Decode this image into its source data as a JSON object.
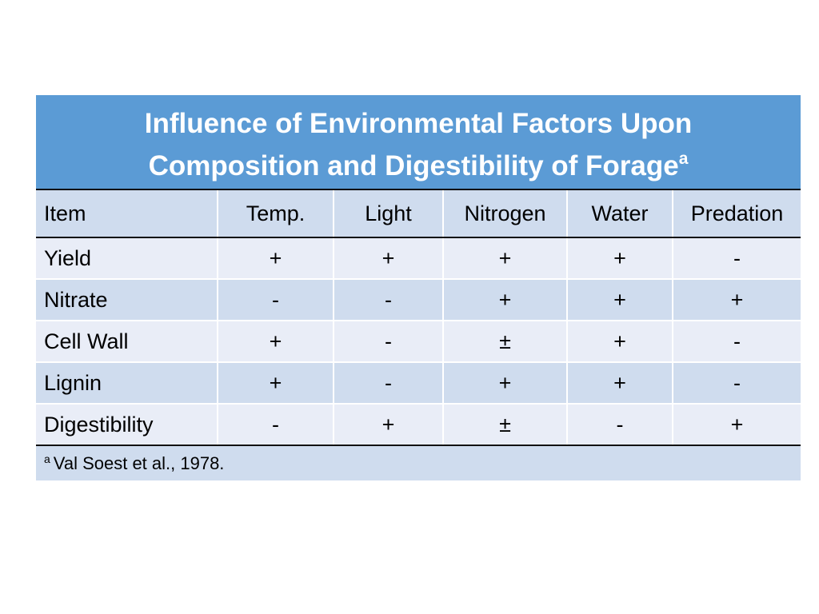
{
  "table": {
    "title_line1": "Influence of Environmental Factors Upon",
    "title_line2": "Composition and Digestibility of Forage",
    "title_superscript": "a",
    "columns": [
      "Item",
      "Temp.",
      "Light",
      "Nitrogen",
      "Water",
      "Predation"
    ],
    "rows": [
      {
        "item": "Yield",
        "values": [
          "+",
          "+",
          "+",
          "+",
          "-"
        ]
      },
      {
        "item": "Nitrate",
        "values": [
          "-",
          "-",
          "+",
          "+",
          "+"
        ]
      },
      {
        "item": "Cell Wall",
        "values": [
          "+",
          "-",
          "±",
          "+",
          "-"
        ]
      },
      {
        "item": "Lignin",
        "values": [
          "+",
          "-",
          "+",
          "+",
          "-"
        ]
      },
      {
        "item": "Digestibility",
        "values": [
          "-",
          "+",
          "±",
          "-",
          "+"
        ]
      }
    ],
    "footnote_marker": "a",
    "footnote_text": "Val Soest et al., 1978."
  },
  "colors": {
    "title_bg": "#5b9bd5",
    "row_light": "#e9edf7",
    "row_dark": "#cfdcee"
  }
}
